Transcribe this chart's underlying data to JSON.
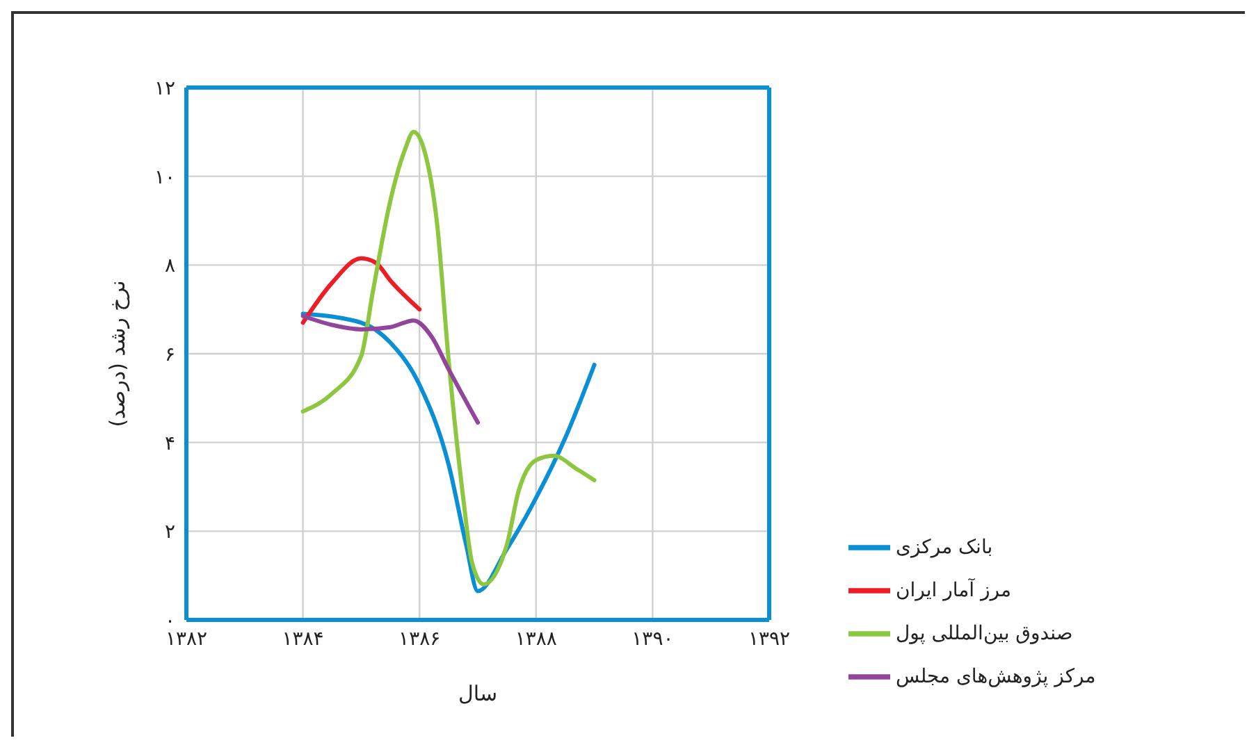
{
  "chart_data": {
    "type": "line",
    "xlabel": "سال",
    "ylabel": "نرخ رشد (درصد)",
    "xlim": [
      1382,
      1392
    ],
    "xticks": [
      {
        "value": 1382,
        "label": "۱۳۸۲"
      },
      {
        "value": 1384,
        "label": "۱۳۸۴"
      },
      {
        "value": 1386,
        "label": "۱۳۸۶"
      },
      {
        "value": 1388,
        "label": "۱۳۸۸"
      },
      {
        "value": 1390,
        "label": "۱۳۹۰"
      },
      {
        "value": 1392,
        "label": "۱۳۹۲"
      }
    ],
    "ylim": [
      0,
      12
    ],
    "yticks": [
      {
        "value": 0,
        "label": "۰"
      },
      {
        "value": 2,
        "label": "۲"
      },
      {
        "value": 4,
        "label": "۴"
      },
      {
        "value": 6,
        "label": "۶"
      },
      {
        "value": 8,
        "label": "۸"
      },
      {
        "value": 10,
        "label": "۱۰"
      },
      {
        "value": 12,
        "label": "۱۲"
      }
    ],
    "grid": true,
    "legend": "bottom right",
    "marker": "none",
    "line_style": "solid",
    "series": [
      {
        "name": "بانک مرکزی",
        "color": "#0a8fd6",
        "x": [
          1384,
          1385,
          1385.5,
          1386,
          1386.5,
          1386.8,
          1387,
          1387.5,
          1388,
          1388.5,
          1389
        ],
        "values": [
          6.9,
          6.7,
          6.25,
          5.3,
          3.5,
          1.7,
          0.65,
          1.6,
          2.75,
          4.1,
          5.75
        ]
      },
      {
        "name": "مرز آمار ایران",
        "color": "#ee1c25",
        "x": [
          1384,
          1384.5,
          1385,
          1385.25,
          1385.5,
          1386
        ],
        "values": [
          6.7,
          7.6,
          8.15,
          8.05,
          7.65,
          7
        ]
      },
      {
        "name": "صندوق بین‌المللی پول",
        "color": "#8dc63f",
        "x": [
          1384,
          1384.5,
          1385,
          1385.2,
          1385.5,
          1385.75,
          1385.9,
          1386.1,
          1386.3,
          1386.5,
          1386.75,
          1386.9,
          1387.1,
          1387.5,
          1387.7,
          1388,
          1388.3,
          1388.7,
          1389
        ],
        "values": [
          4.7,
          5.1,
          5.95,
          7.4,
          9.45,
          10.6,
          11,
          10.5,
          8.95,
          5.85,
          2.75,
          1.3,
          0.8,
          1.7,
          2.9,
          3.6,
          3.7,
          3.4,
          3.15
        ]
      },
      {
        "name": "مرکز پژوهش‌های مجلس",
        "color": "#92459b",
        "x": [
          1384,
          1384.5,
          1385,
          1385.5,
          1385.9,
          1386.2,
          1386.5,
          1387
        ],
        "values": [
          6.85,
          6.65,
          6.55,
          6.6,
          6.75,
          6.4,
          5.65,
          4.45
        ]
      }
    ]
  }
}
